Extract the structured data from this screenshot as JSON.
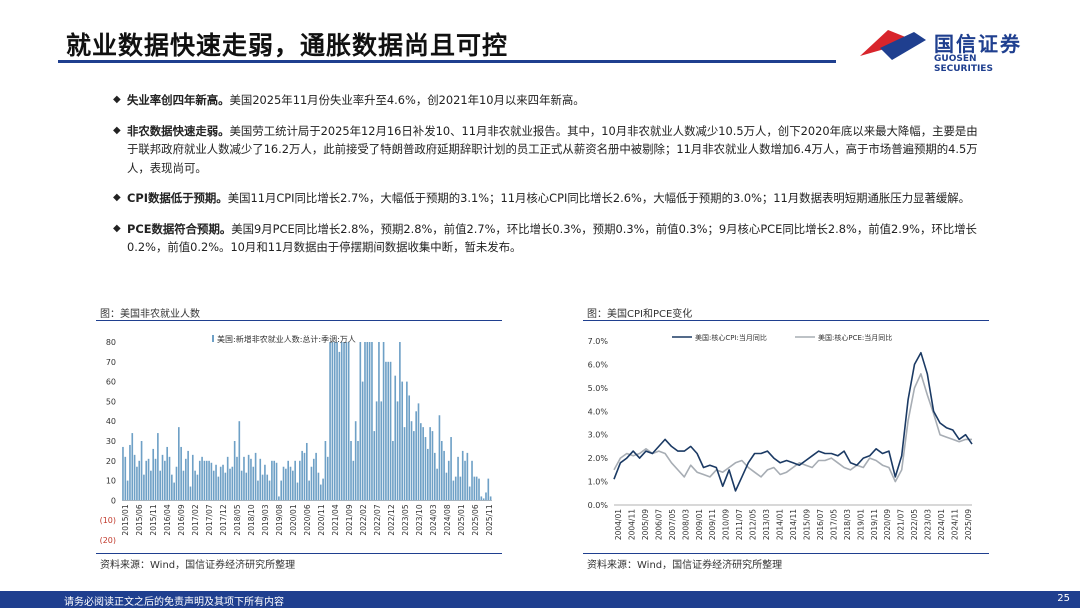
{
  "header": {
    "title": "就业数据快速走弱，通胀数据尚且可控",
    "logo_cn": "国信证券",
    "logo_en": "GUOSEN SECURITIES"
  },
  "bullets": [
    {
      "head": "失业率创四年新高。",
      "body": "美国2025年11月份失业率升至4.6%，创2021年10月以来四年新高。"
    },
    {
      "head": "非农数据快速走弱。",
      "body": "美国劳工统计局于2025年12月16日补发10、11月非农就业报告。其中，10月非农就业人数减少10.5万人，创下2020年底以来最大降幅，主要是由于联邦政府就业人数减少了16.2万人，此前接受了特朗普政府延期辞职计划的员工正式从薪资名册中被剔除；11月非农就业人数增加6.4万人，高于市场普遍预期的4.5万人，表现尚可。"
    },
    {
      "head": "CPI数据低于预期。",
      "body": "美国11月CPI同比增长2.7%，大幅低于预期的3.1%；11月核心CPI同比增长2.6%，大幅低于预期的3.0%；11月数据表明短期通胀压力显著缓解。"
    },
    {
      "head": "PCE数据符合预期。",
      "body": "美国9月PCE同比增长2.8%，预期2.8%，前值2.7%，环比增长0.3%，预期0.3%，前值0.3%；9月核心PCE同比增长2.8%，前值2.9%，环比增长0.2%，前值0.2%。10月和11月数据由于停摆期间数据收集中断，暂未发布。"
    }
  ],
  "left_chart": {
    "title": "图：美国非农就业人数",
    "source": "资料来源：Wind，国信证券经济研究所整理"
  },
  "right_chart": {
    "title": "图：美国CPI和PCE变化",
    "source": "资料来源：Wind，国信证券经济研究所整理"
  },
  "footer": {
    "disclaimer": "请务必阅读正文之后的免责声明及其项下所有内容",
    "page": "25"
  },
  "colors": {
    "brand": "#1f3f8f",
    "bar": "#6ea0c6",
    "cpi": "#1b3a64",
    "pce": "#a7adb4",
    "logo_red": "#d8252c"
  },
  "chart_data": [
    {
      "type": "bar",
      "series": [
        {
          "name": "美国:新增非农就业人数:总计:季调:万人"
        }
      ],
      "ylim": [
        -20,
        80
      ],
      "yticks": [
        80,
        70,
        60,
        50,
        40,
        30,
        20,
        10,
        0,
        -10,
        -20
      ],
      "ytick_labels": [
        "80",
        "70",
        "60",
        "50",
        "40",
        "30",
        "20",
        "10",
        "0",
        "(10)",
        "(20)"
      ],
      "x_labels": [
        "2015/01",
        "2015/06",
        "2015/11",
        "2016/04",
        "2016/09",
        "2017/02",
        "2017/07",
        "2017/12",
        "2018/05",
        "2018/10",
        "2019/03",
        "2019/08",
        "2020/01",
        "2020/06",
        "2020/11",
        "2021/04",
        "2021/09",
        "2022/02",
        "2022/07",
        "2022/12",
        "2023/05",
        "2023/10",
        "2024/03",
        "2024/08",
        "2025/01",
        "2025/06",
        "2025/11"
      ],
      "values": [
        27,
        22,
        10,
        28,
        34,
        23,
        17,
        20,
        30,
        13,
        20,
        21,
        15,
        26,
        21,
        34,
        15,
        23,
        20,
        27,
        22,
        13,
        9,
        17,
        37,
        27,
        15,
        21,
        25,
        7,
        23,
        15,
        13,
        20,
        22,
        20,
        20,
        20,
        19,
        15,
        18,
        12,
        17,
        18,
        14,
        22,
        16,
        17,
        30,
        22,
        40,
        15,
        22,
        14,
        23,
        21,
        17,
        24,
        10,
        21,
        13,
        18,
        13,
        10,
        20,
        20,
        19,
        2,
        10,
        17,
        16,
        20,
        17,
        15,
        20,
        9,
        20,
        25,
        24,
        29,
        10,
        17,
        21,
        24,
        14,
        8,
        11,
        30,
        22,
        80,
        80,
        80,
        80,
        75,
        80,
        80,
        80,
        80,
        30,
        20,
        40,
        30,
        80,
        60,
        80,
        80,
        80,
        80,
        35,
        50,
        80,
        50,
        80,
        70,
        70,
        70,
        30,
        63,
        50,
        80,
        60,
        37,
        60,
        53,
        40,
        35,
        45,
        49,
        39,
        37,
        32,
        26,
        37,
        35,
        24,
        16,
        43,
        30,
        25,
        14,
        20,
        32,
        10,
        12,
        22,
        12,
        25,
        20,
        24,
        7,
        20,
        12,
        12,
        11,
        2,
        1,
        4,
        11,
        2
      ]
    },
    {
      "type": "line",
      "series": [
        {
          "name": "美国:核心CPI:当月同比"
        },
        {
          "name": "美国:核心PCE:当月同比"
        }
      ],
      "ylim": [
        0,
        7
      ],
      "ytick_labels": [
        "7.0%",
        "6.0%",
        "5.0%",
        "4.0%",
        "3.0%",
        "2.0%",
        "1.0%",
        "0.0%"
      ],
      "x_labels": [
        "2004/01",
        "2004/11",
        "2005/09",
        "2006/07",
        "2007/05",
        "2008/03",
        "2009/01",
        "2009/11",
        "2010/09",
        "2011/07",
        "2012/05",
        "2013/03",
        "2014/01",
        "2014/11",
        "2015/09",
        "2016/07",
        "2017/05",
        "2018/03",
        "2019/01",
        "2019/11",
        "2020/09",
        "2021/07",
        "2022/05",
        "2023/03",
        "2024/01",
        "2024/11",
        "2025/09"
      ],
      "cpi": [
        1.1,
        1.8,
        2.0,
        2.3,
        2.0,
        2.3,
        2.2,
        2.5,
        2.8,
        2.5,
        2.3,
        2.3,
        2.5,
        2.2,
        1.6,
        1.7,
        1.6,
        0.8,
        1.5,
        0.6,
        1.2,
        1.8,
        2.2,
        2.2,
        2.3,
        2.0,
        1.8,
        1.9,
        1.8,
        1.7,
        1.9,
        2.1,
        2.3,
        2.2,
        2.2,
        2.1,
        2.3,
        1.8,
        1.7,
        2.0,
        2.1,
        2.4,
        2.2,
        2.3,
        1.2,
        2.1,
        4.5,
        6.0,
        6.5,
        5.6,
        4.0,
        3.5,
        3.3,
        3.2,
        2.8,
        3.0,
        2.6
      ],
      "pce": [
        1.5,
        2.0,
        2.2,
        2.1,
        2.2,
        2.4,
        2.2,
        2.3,
        2.2,
        1.8,
        1.5,
        1.2,
        1.7,
        1.4,
        1.3,
        1.2,
        1.5,
        1.4,
        1.6,
        1.8,
        1.9,
        1.6,
        1.4,
        1.2,
        1.5,
        1.6,
        1.3,
        1.4,
        1.6,
        1.8,
        1.7,
        1.6,
        1.9,
        1.9,
        2.0,
        1.8,
        1.6,
        1.5,
        1.7,
        1.6,
        2.0,
        1.9,
        1.7,
        1.6,
        1.0,
        1.5,
        3.6,
        5.0,
        5.6,
        4.7,
        3.9,
        3.0,
        2.9,
        2.8,
        2.7,
        2.8,
        2.8
      ]
    }
  ]
}
